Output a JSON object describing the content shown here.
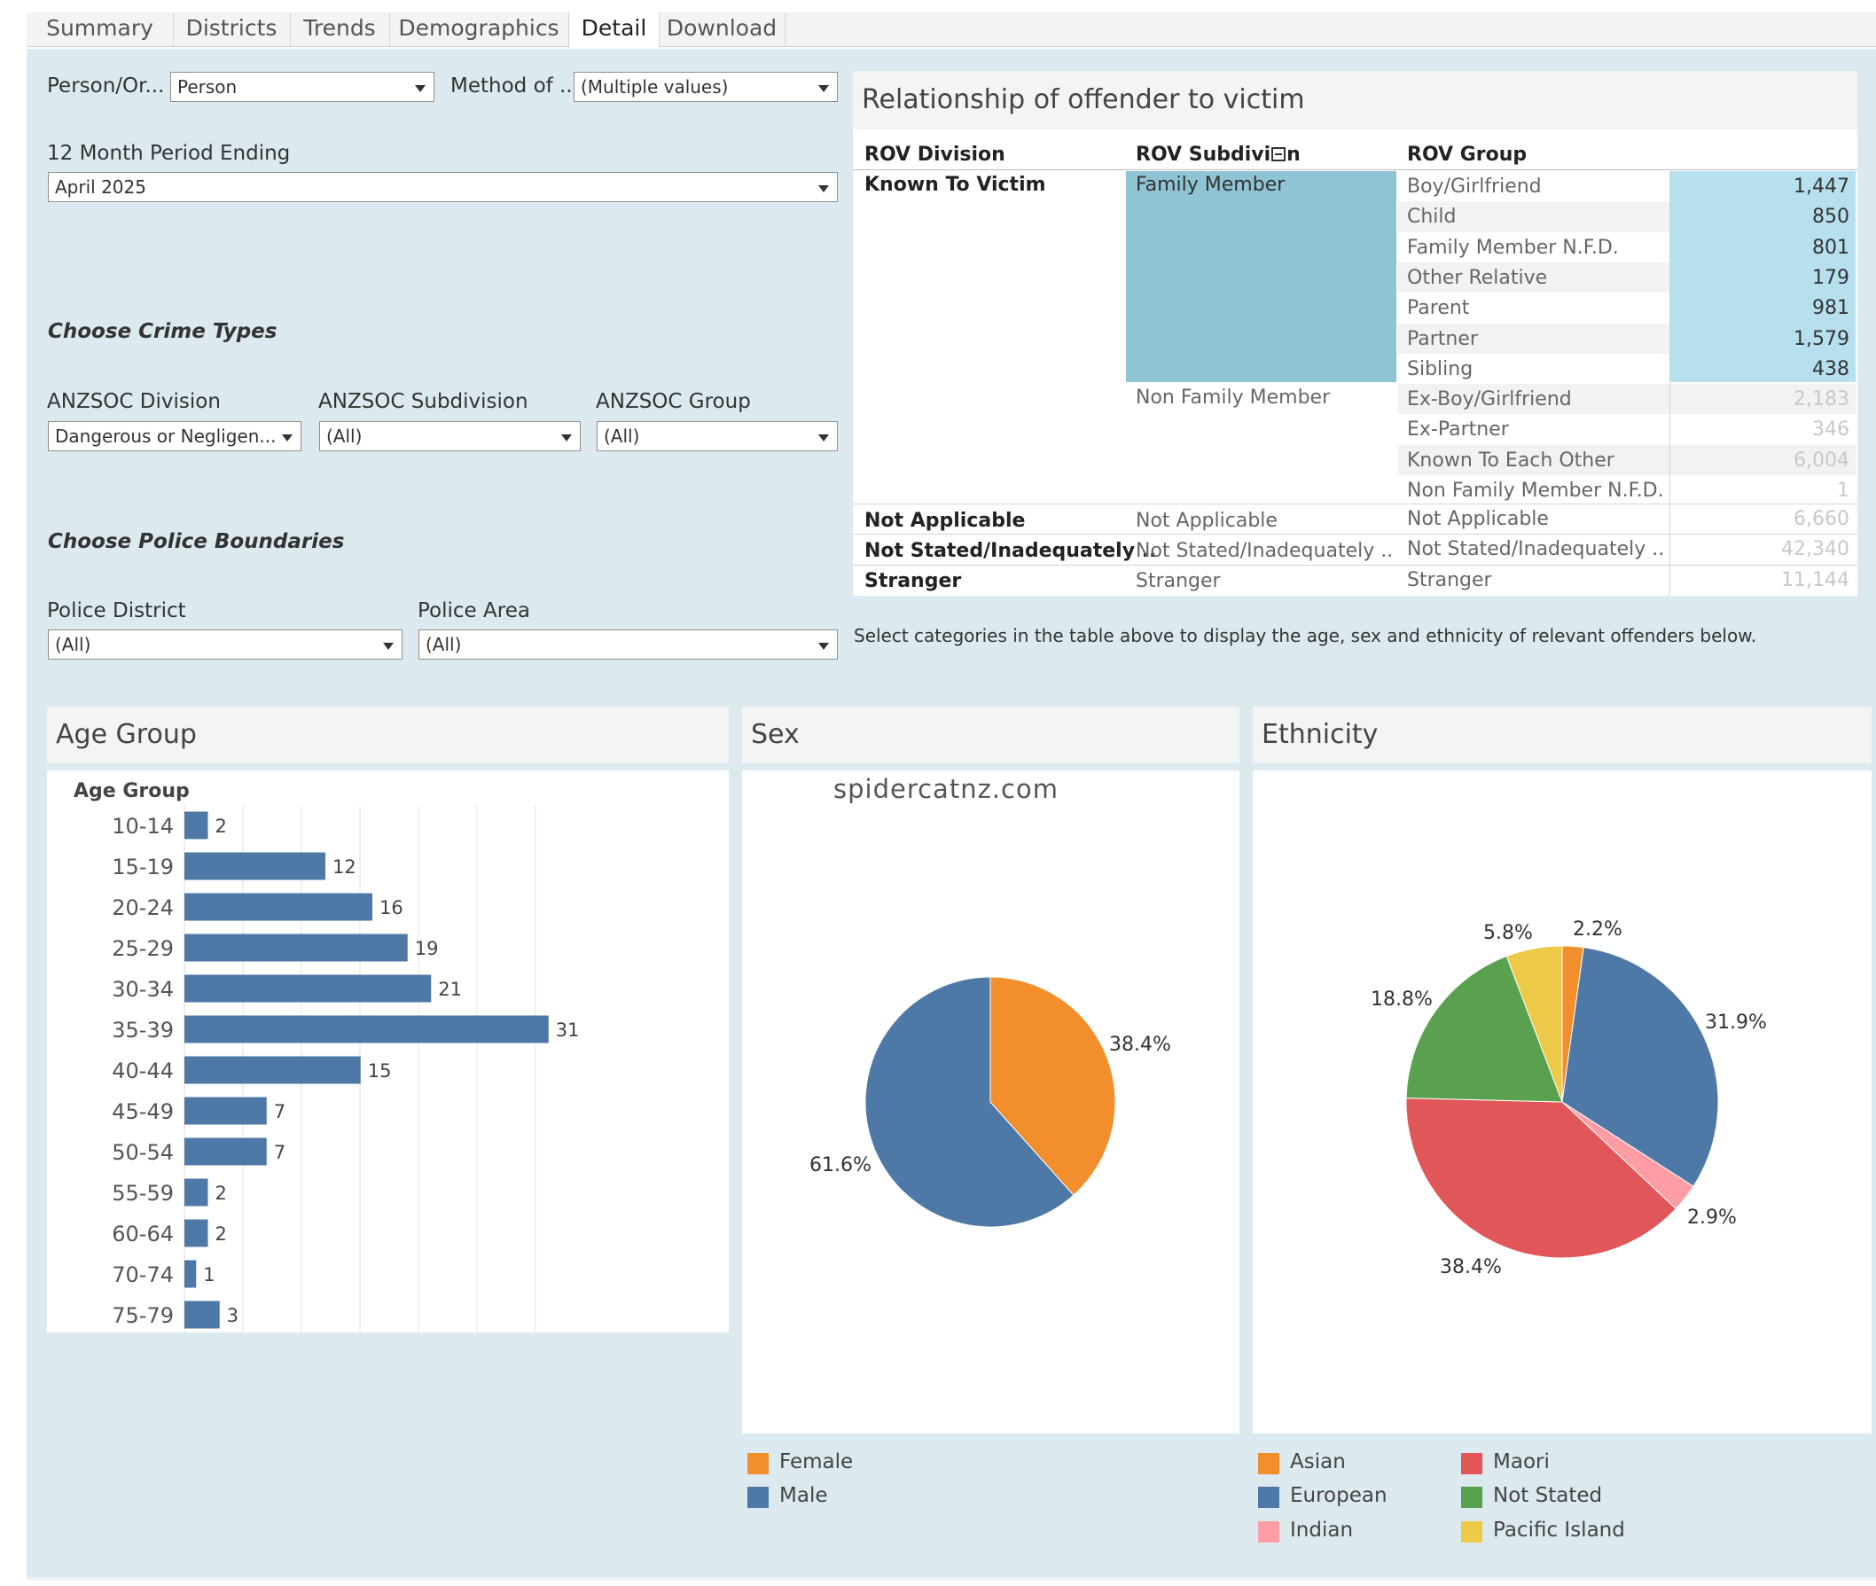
{
  "tabs": [
    "Summary",
    "Districts",
    "Trends",
    "Demographics",
    "Detail",
    "Download"
  ],
  "active_tab": "Detail",
  "filters": {
    "person_org": {
      "label": "Person/Or...",
      "value": "Person"
    },
    "method": {
      "label": "Method of ...",
      "value": "(Multiple values)"
    },
    "period": {
      "label": "12 Month Period Ending",
      "value": "April 2025"
    },
    "crime_types_heading": "Choose Crime Types",
    "anzsoc_division": {
      "label": "ANZSOC Division",
      "value": "Dangerous or Negligen..."
    },
    "anzsoc_subdivision": {
      "label": "ANZSOC Subdivision",
      "value": "(All)"
    },
    "anzsoc_group": {
      "label": "ANZSOC Group",
      "value": "(All)"
    },
    "boundaries_heading": "Choose Police Boundaries",
    "police_district": {
      "label": "Police District",
      "value": "(All)"
    },
    "police_area": {
      "label": "Police Area",
      "value": "(All)"
    }
  },
  "rov": {
    "title": "Relationship of offender to victim",
    "headers": {
      "division": "ROV Division",
      "subdivision": "ROV Subdivi",
      "subdivision_end": "n",
      "group": "ROV Group"
    },
    "divisions": {
      "known": "Known To Victim",
      "na": "Not Applicable",
      "ns": "Not Stated/Inadequately ..",
      "stranger": "Stranger"
    },
    "subdivisions": {
      "family": "Family Member",
      "nonfamily": "Non Family Member",
      "na": "Not Applicable",
      "ns": "Not Stated/Inadequately ..",
      "stranger": "Stranger"
    },
    "rows": [
      {
        "group": "Boy/Girlfriend",
        "value": "1,447"
      },
      {
        "group": "Child",
        "value": "850"
      },
      {
        "group": "Family Member N.F.D.",
        "value": "801"
      },
      {
        "group": "Other Relative",
        "value": "179"
      },
      {
        "group": "Parent",
        "value": "981"
      },
      {
        "group": "Partner",
        "value": "1,579"
      },
      {
        "group": "Sibling",
        "value": "438"
      },
      {
        "group": "Ex-Boy/Girlfriend",
        "value": "2,183"
      },
      {
        "group": "Ex-Partner",
        "value": "346"
      },
      {
        "group": "Known To Each Other",
        "value": "6,004"
      },
      {
        "group": "Non Family Member N.F.D.",
        "value": "1"
      },
      {
        "group": "Not Applicable",
        "value": "6,660"
      },
      {
        "group": "Not Stated/Inadequately ..",
        "value": "42,340"
      },
      {
        "group": "Stranger",
        "value": "11,144"
      }
    ],
    "note": "Select categories in the  table above to display the age, sex and ethnicity of relevant offenders below."
  },
  "panels": {
    "age": "Age Group",
    "sex": "Sex",
    "ethnicity": "Ethnicity"
  },
  "watermark": "spidercatnz.com",
  "colors": {
    "blue": "#4e79a7",
    "orange": "#f28e2b",
    "red": "#e15759",
    "pink": "#ff9da7",
    "green": "#59a14f",
    "yellow": "#edc948",
    "highlight": "#8ec4d3",
    "highlight_light": "#b7e0ef"
  },
  "chart_data": [
    {
      "type": "bar",
      "orientation": "horizontal",
      "ylabel": "Age Group",
      "categories": [
        "10-14",
        "15-19",
        "20-24",
        "25-29",
        "30-34",
        "35-39",
        "40-44",
        "45-49",
        "50-54",
        "55-59",
        "60-64",
        "70-74",
        "75-79"
      ],
      "values": [
        2,
        12,
        16,
        19,
        21,
        31,
        15,
        7,
        7,
        2,
        2,
        1,
        3
      ]
    },
    {
      "type": "pie",
      "labels": [
        "Female",
        "Male"
      ],
      "values": [
        38.4,
        61.6
      ],
      "value_labels": [
        "38.4%",
        "61.6%"
      ],
      "colors": [
        "#f28e2b",
        "#4e79a7"
      ]
    },
    {
      "type": "pie",
      "labels": [
        "Asian",
        "European",
        "Indian",
        "Maori",
        "Not Stated",
        "Pacific Island"
      ],
      "values": [
        2.2,
        31.9,
        2.9,
        38.4,
        18.8,
        5.8
      ],
      "value_labels": [
        "2.2%",
        "31.9%",
        "2.9%",
        "38.4%",
        "18.8%",
        "5.8%"
      ],
      "colors": [
        "#f28e2b",
        "#4e79a7",
        "#ff9da7",
        "#e15759",
        "#59a14f",
        "#edc948"
      ]
    }
  ]
}
